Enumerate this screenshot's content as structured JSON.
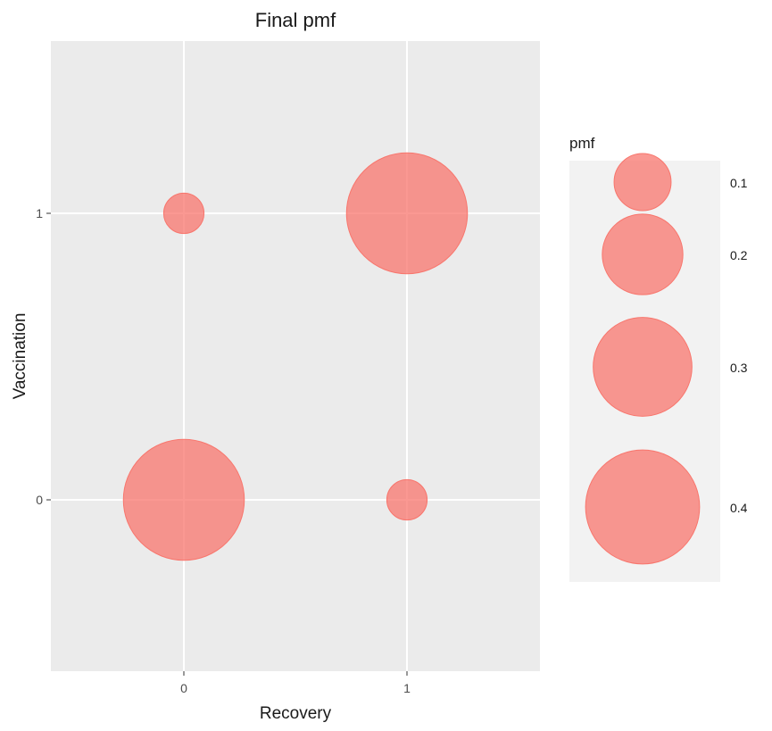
{
  "chart_data": {
    "type": "scatter",
    "title": "Final pmf",
    "xlabel": "Recovery",
    "ylabel": "Vaccination",
    "x_categories": [
      "0",
      "1"
    ],
    "y_categories": [
      "0",
      "1"
    ],
    "points": [
      {
        "x": "0",
        "y": "0",
        "pmf": 0.45
      },
      {
        "x": "0",
        "y": "1",
        "pmf": 0.05
      },
      {
        "x": "1",
        "y": "0",
        "pmf": 0.05
      },
      {
        "x": "1",
        "y": "1",
        "pmf": 0.45
      }
    ],
    "size_legend": {
      "title": "pmf",
      "labels": [
        "0.1",
        "0.2",
        "0.3",
        "0.4"
      ],
      "values": [
        0.1,
        0.2,
        0.3,
        0.4
      ],
      "position": "right"
    },
    "point_color": "#F8766D",
    "panel_background": "#EBEBEB",
    "legend_background": "#F2F2F2",
    "grid": true
  }
}
